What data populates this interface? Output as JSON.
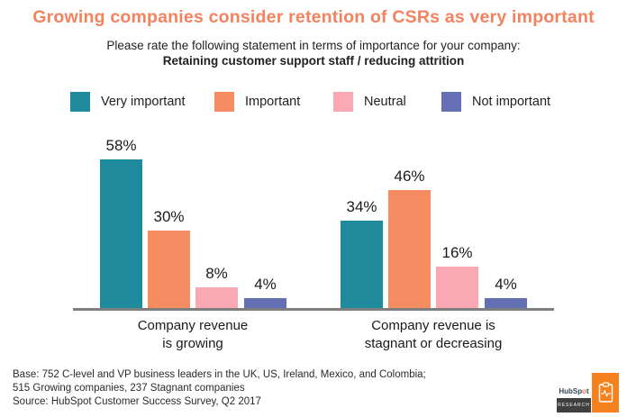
{
  "title": "Growing companies consider retention of CSRs as very important",
  "subtitle": {
    "line1": "Please rate the following statement in terms of importance for your company:",
    "line2": "Retaining customer support staff / reducing attrition"
  },
  "chart_data": {
    "type": "bar",
    "title": "Growing companies consider retention of CSRs as very important",
    "question": "Please rate the following statement in terms of importance for your company: Retaining customer support staff / reducing attrition",
    "categories": [
      [
        "Company revenue",
        "is growing"
      ],
      [
        "Company revenue is",
        "stagnant or decreasing"
      ]
    ],
    "series": [
      {
        "name": "Very important",
        "color": "#1E8A9C",
        "values": [
          58,
          34
        ]
      },
      {
        "name": "Important",
        "color": "#F68C61",
        "values": [
          30,
          46
        ]
      },
      {
        "name": "Neutral",
        "color": "#F8A9B3",
        "values": [
          8,
          16
        ]
      },
      {
        "name": "Not important",
        "color": "#6470B3",
        "values": [
          4,
          4
        ]
      }
    ],
    "value_suffix": "%",
    "ylim": [
      0,
      60
    ],
    "grid": false,
    "legend_position": "top",
    "xlabel": "",
    "ylabel": ""
  },
  "footer": {
    "line1": "Base: 752 C-level and VP business leaders in the UK, US, Ireland, Mexico, and Colombia;",
    "line2": "515 Growing companies, 237 Stagnant companies",
    "line3": "Source: HubSpot Customer Success Survey, Q2 2017"
  },
  "logo": {
    "brand_prefix": "HubSp",
    "brand_sprocket": "o",
    "brand_suffix": "t",
    "sublabel": "RESEARCH"
  },
  "colors": {
    "title_orange": "#F4825F",
    "axis_gray": "#7f7f7f",
    "logo_orange": "#F5821F",
    "logo_dark": "#3f3f3f"
  }
}
